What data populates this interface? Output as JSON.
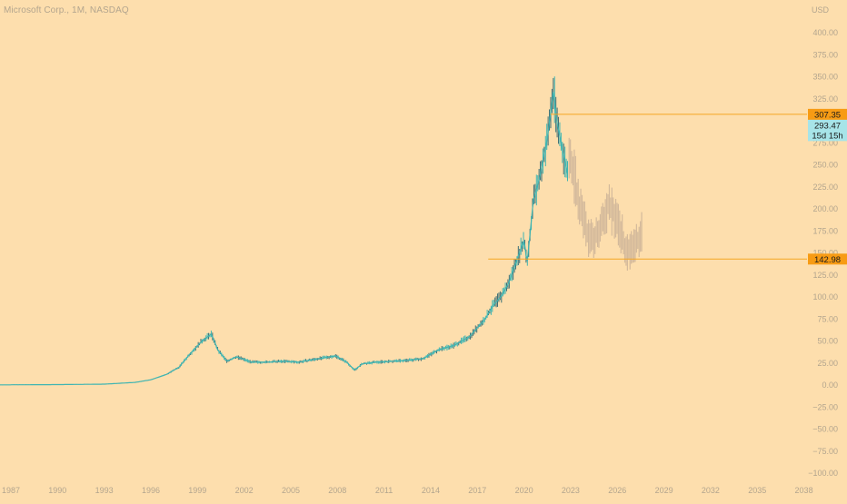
{
  "header": {
    "symbol": "Microsoft Corp., 1M, NASDAQ",
    "currency": "USD"
  },
  "colors": {
    "background": "#FDDEAD",
    "axis_text": "#B3A58E",
    "history_line": "#3FB5B2",
    "history_dark": "#3C6F76",
    "projection": "#D3B99B",
    "level_line": "#F5A623",
    "level_badge": "#F79B14",
    "current_badge": "#A7E4E8"
  },
  "chart_data": {
    "type": "line",
    "title": "",
    "xlabel": "",
    "ylabel": "",
    "x_ticks": [
      "1987",
      "1990",
      "1993",
      "1996",
      "1999",
      "2002",
      "2005",
      "2008",
      "2011",
      "2014",
      "2017",
      "2020",
      "2023",
      "2026",
      "2029",
      "2032",
      "2035",
      "2038"
    ],
    "y_ticks": [
      "400.00",
      "375.00",
      "350.00",
      "325.00",
      "300.00",
      "275.00",
      "250.00",
      "225.00",
      "200.00",
      "175.00",
      "150.00",
      "125.00",
      "100.00",
      "75.00",
      "50.00",
      "25.00",
      "0.00",
      "−25.00",
      "−50.00",
      "−75.00",
      "−100.00"
    ],
    "xlim": [
      1986.3,
      2038.2
    ],
    "ylim": [
      -100,
      400
    ],
    "grid": false,
    "series": [
      {
        "values_x": [
          1986.3,
          1990,
          1993,
          1995,
          1996,
          1997,
          1997.8,
          1998.5,
          1999.3,
          1999.9,
          2000.3,
          2000.9,
          2001.5,
          2002.5,
          2003.5,
          2004.5,
          2005.5,
          2006.5,
          2007.5,
          2007.9,
          2008.6,
          2009.1,
          2009.6,
          2010.5,
          2011.5,
          2012.5,
          2013.5,
          2014.5,
          2015.5,
          2016.5,
          2017,
          2017.5,
          2018,
          2018.5,
          2019,
          2019.5,
          2020,
          2020.2,
          2020.6,
          2021,
          2021.5,
          2021.9,
          2022.1,
          2022.5,
          2022.8
        ],
        "values_y": [
          0.2,
          0.5,
          1,
          3,
          6,
          12,
          20,
          35,
          50,
          58,
          40,
          27,
          32,
          26,
          26,
          27,
          26,
          29,
          32,
          33,
          26,
          17,
          24,
          26,
          27,
          28,
          30,
          40,
          45,
          55,
          65,
          75,
          90,
          100,
          115,
          140,
          165,
          138,
          210,
          235,
          280,
          335,
          300,
          265,
          240
        ]
      },
      {
        "values_x": [
          2022.9,
          2023.6,
          2024.2,
          2024.8,
          2025.4,
          2026,
          2026.6,
          2027,
          2027.6
        ],
        "values_y": [
          265,
          200,
          165,
          175,
          205,
          190,
          150,
          155,
          175
        ]
      }
    ],
    "annotations": [
      {
        "label": "307.35",
        "value": 307.35
      },
      {
        "label": "142.98",
        "value": 142.98
      },
      {
        "label": "293.47",
        "value": 293.47
      },
      {
        "label": "15d 15h",
        "value": null
      }
    ]
  }
}
